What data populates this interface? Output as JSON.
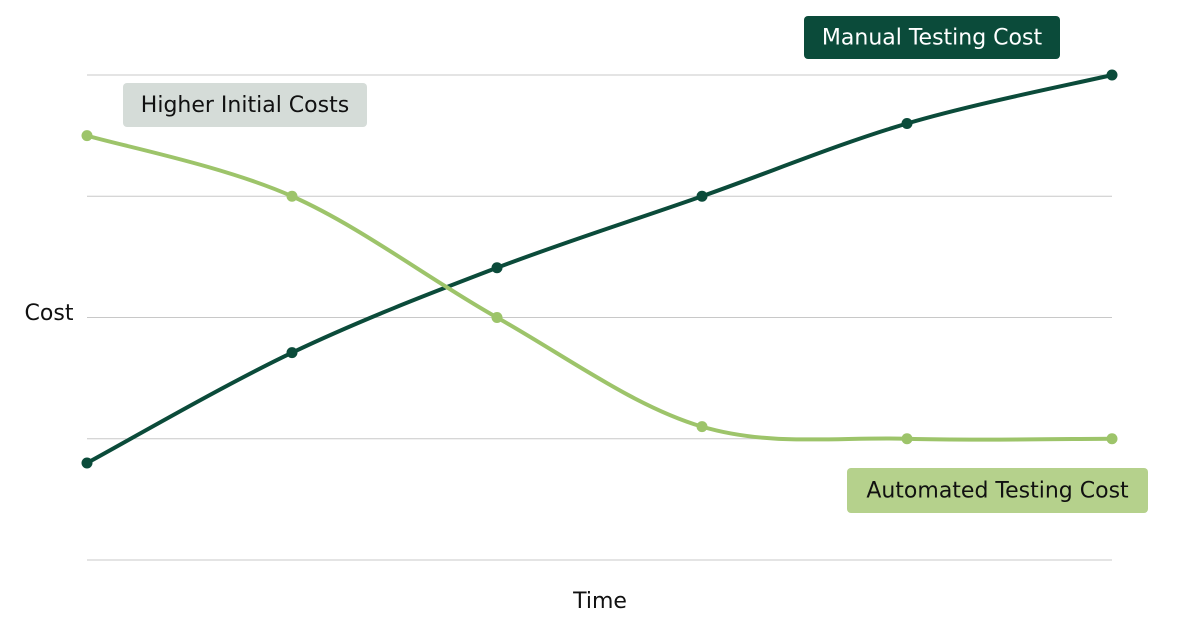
{
  "chart_data": {
    "type": "line",
    "x_label": "Time",
    "y_label": "Cost",
    "categories": [
      null,
      null,
      null,
      null,
      null,
      null
    ],
    "series": [
      {
        "name": "Manual Testing Cost",
        "color": "#0b4b3a",
        "values": [
          0.8,
          1.71,
          2.41,
          3.0,
          3.6,
          4.0
        ]
      },
      {
        "name": "Automated Testing Cost",
        "color": "#9dc46a",
        "values": [
          3.5,
          3.0,
          2.0,
          1.1,
          1.0,
          1.0
        ]
      }
    ],
    "annotations": [
      {
        "text": "Manual Testing Cost",
        "background": "#0b4b3a",
        "color": "#ffffff"
      },
      {
        "text": "Higher Initial Costs",
        "background": "#d5dcd8",
        "color": "#111111"
      },
      {
        "text": "Automated Testing Cost",
        "background": "#b5d18c",
        "color": "#111111"
      }
    ],
    "ylim": [
      0,
      4
    ],
    "yticks": [
      0,
      1,
      2,
      3,
      4
    ],
    "grid": true,
    "show_tick_labels": false,
    "smooth": true
  }
}
